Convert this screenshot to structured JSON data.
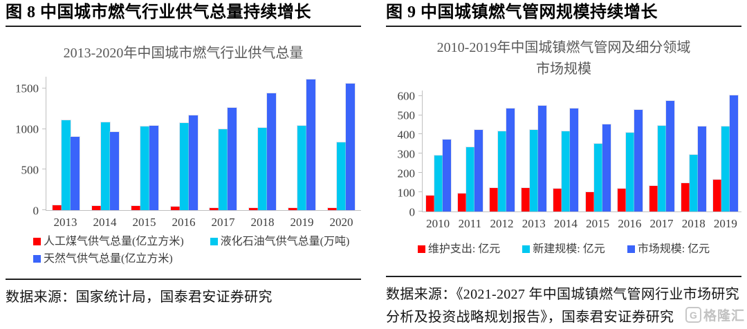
{
  "figures": [
    {
      "header": "图 8  中国城市燃气行业供气总量持续增长",
      "source": "数据来源：国家统计局，国泰君安证券研究"
    },
    {
      "header": "图 9  中国城镇燃气管网规模持续增长",
      "source": "数据来源：《2021-2027 年中国城镇燃气管网行业市场研究分析及投资战略规划报告》，国泰君安证券研究"
    }
  ],
  "chart_data": [
    {
      "type": "bar",
      "title": "2013-2020年中国城市燃气行业供气总量",
      "xlabel": "",
      "ylabel": "",
      "categories": [
        "2013",
        "2014",
        "2015",
        "2016",
        "2017",
        "2018",
        "2019",
        "2020"
      ],
      "series": [
        {
          "name": "人工煤气供气总量(亿立方米)",
          "color": "#ff0000",
          "values": [
            57,
            49,
            44,
            40,
            26,
            25,
            24,
            21
          ]
        },
        {
          "name": "液化石油气供气总量(万吨)",
          "color": "#00c8f0",
          "values": [
            1110,
            1080,
            1035,
            1075,
            1000,
            1015,
            1040,
            835
          ]
        },
        {
          "name": "天然气供气总量(亿立方米)",
          "color": "#3a64fa",
          "values": [
            901,
            962,
            1041,
            1172,
            1264,
            1444,
            1609,
            1564
          ]
        }
      ],
      "yticks": [
        0,
        500,
        1000,
        1500
      ],
      "ylim": [
        0,
        1650
      ],
      "grid": false,
      "legend_position": "bottom",
      "legend_rows": [
        [
          0,
          1
        ],
        [
          2
        ]
      ]
    },
    {
      "type": "bar",
      "title": "2010-2019年中国城镇燃气管网及细分领域市场规模",
      "xlabel": "",
      "ylabel": "",
      "categories": [
        "2010",
        "2011",
        "2012",
        "2013",
        "2014",
        "2015",
        "2016",
        "2017",
        "2018",
        "2019"
      ],
      "series": [
        {
          "name": "维护支出: 亿元",
          "color": "#ff0000",
          "values": [
            83,
            93,
            120,
            122,
            119,
            100,
            119,
            130,
            145,
            163
          ]
        },
        {
          "name": "新建规模: 亿元",
          "color": "#00c8f0",
          "values": [
            290,
            332,
            415,
            425,
            415,
            350,
            408,
            445,
            295,
            440
          ]
        },
        {
          "name": "市场规模: 亿元",
          "color": "#3a64fa",
          "values": [
            373,
            425,
            535,
            548,
            535,
            453,
            528,
            575,
            440,
            605
          ]
        }
      ],
      "yticks": [
        0,
        100,
        200,
        300,
        400,
        500,
        600
      ],
      "ylim": [
        0,
        630
      ],
      "grid": false,
      "legend_position": "bottom",
      "legend_rows": [
        [
          0,
          1,
          2
        ]
      ]
    }
  ],
  "watermark": {
    "icon_label": "G",
    "brand": "格隆汇"
  }
}
